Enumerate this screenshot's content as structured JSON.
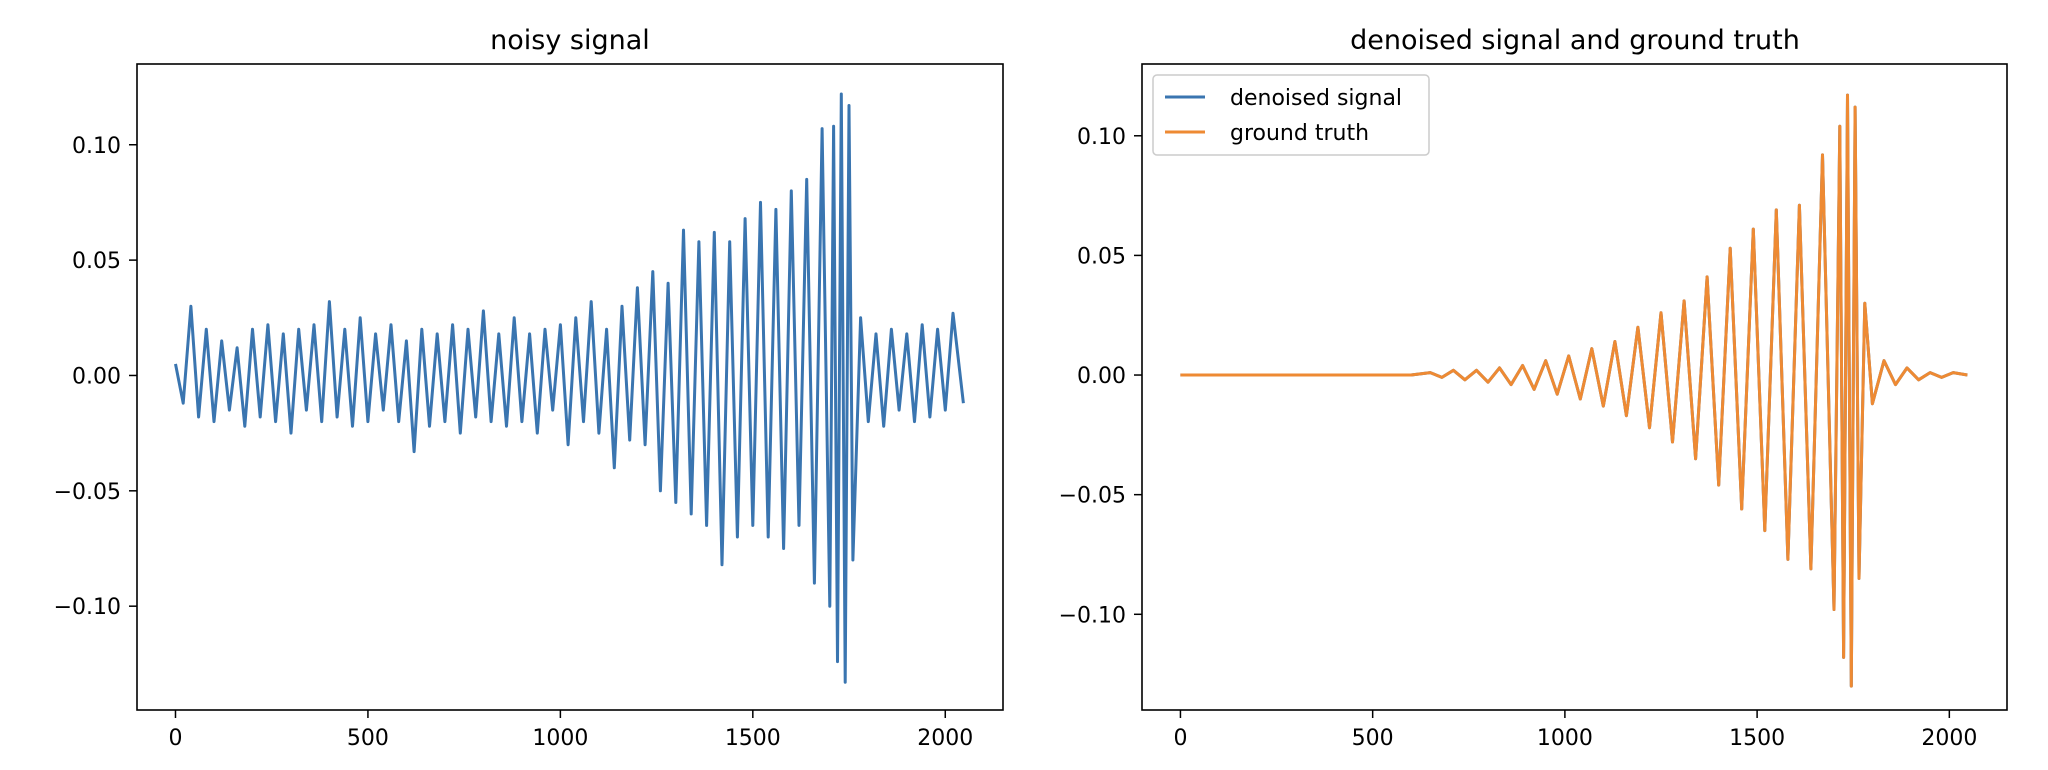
{
  "chart_data": [
    {
      "type": "line",
      "title": "noisy signal",
      "xlabel": "",
      "ylabel": "",
      "xlim": [
        -100,
        2150
      ],
      "ylim": [
        -0.145,
        0.135
      ],
      "x_ticks": [
        0,
        500,
        1000,
        1500,
        2000
      ],
      "x_tick_labels": [
        "0",
        "500",
        "1000",
        "1500",
        "2000"
      ],
      "y_ticks": [
        -0.1,
        -0.05,
        0.0,
        0.05,
        0.1
      ],
      "y_tick_labels": [
        "−0.10",
        "−0.05",
        "0.00",
        "0.05",
        "0.10"
      ],
      "grid": false,
      "legend": null,
      "series": [
        {
          "name": "noisy signal",
          "color": "#3a75b0",
          "x": [
            0,
            20,
            40,
            60,
            80,
            100,
            120,
            140,
            160,
            180,
            200,
            220,
            240,
            260,
            280,
            300,
            320,
            340,
            360,
            380,
            400,
            420,
            440,
            460,
            480,
            500,
            520,
            540,
            560,
            580,
            600,
            620,
            640,
            660,
            680,
            700,
            720,
            740,
            760,
            780,
            800,
            820,
            840,
            860,
            880,
            900,
            920,
            940,
            960,
            980,
            1000,
            1020,
            1040,
            1060,
            1080,
            1100,
            1120,
            1140,
            1160,
            1180,
            1200,
            1220,
            1240,
            1260,
            1280,
            1300,
            1320,
            1340,
            1360,
            1380,
            1400,
            1420,
            1440,
            1460,
            1480,
            1500,
            1520,
            1540,
            1560,
            1580,
            1600,
            1620,
            1640,
            1660,
            1680,
            1700,
            1710,
            1720,
            1730,
            1740,
            1750,
            1760,
            1780,
            1800,
            1820,
            1840,
            1860,
            1880,
            1900,
            1920,
            1940,
            1960,
            1980,
            2000,
            2020,
            2047
          ],
          "values": [
            0.005,
            -0.012,
            0.03,
            -0.018,
            0.02,
            -0.02,
            0.015,
            -0.015,
            0.012,
            -0.022,
            0.02,
            -0.018,
            0.022,
            -0.02,
            0.018,
            -0.025,
            0.02,
            -0.015,
            0.022,
            -0.02,
            0.032,
            -0.018,
            0.02,
            -0.022,
            0.025,
            -0.02,
            0.018,
            -0.015,
            0.022,
            -0.02,
            0.015,
            -0.033,
            0.02,
            -0.022,
            0.018,
            -0.02,
            0.022,
            -0.025,
            0.02,
            -0.018,
            0.028,
            -0.02,
            0.018,
            -0.022,
            0.025,
            -0.02,
            0.018,
            -0.025,
            0.02,
            -0.015,
            0.022,
            -0.03,
            0.025,
            -0.02,
            0.032,
            -0.025,
            0.02,
            -0.04,
            0.03,
            -0.028,
            0.038,
            -0.03,
            0.045,
            -0.05,
            0.04,
            -0.055,
            0.063,
            -0.06,
            0.058,
            -0.065,
            0.062,
            -0.082,
            0.058,
            -0.07,
            0.068,
            -0.065,
            0.075,
            -0.07,
            0.072,
            -0.075,
            0.08,
            -0.065,
            0.085,
            -0.09,
            0.107,
            -0.1,
            0.108,
            -0.124,
            0.122,
            -0.133,
            0.117,
            -0.08,
            0.025,
            -0.02,
            0.018,
            -0.022,
            0.02,
            -0.015,
            0.018,
            -0.02,
            0.022,
            -0.018,
            0.02,
            -0.015,
            0.027,
            -0.012
          ]
        }
      ]
    },
    {
      "type": "line",
      "title": "denoised signal and ground truth",
      "xlabel": "",
      "ylabel": "",
      "xlim": [
        -100,
        2150
      ],
      "ylim": [
        -0.14,
        0.13
      ],
      "x_ticks": [
        0,
        500,
        1000,
        1500,
        2000
      ],
      "x_tick_labels": [
        "0",
        "500",
        "1000",
        "1500",
        "2000"
      ],
      "y_ticks": [
        -0.1,
        -0.05,
        0.0,
        0.05,
        0.1
      ],
      "y_tick_labels": [
        "−0.10",
        "−0.05",
        "0.00",
        "0.05",
        "0.10"
      ],
      "grid": false,
      "legend": "top-left",
      "series": [
        {
          "name": "denoised signal",
          "color": "#3a75b0",
          "x": [
            0,
            300,
            600,
            650,
            680,
            710,
            740,
            770,
            800,
            830,
            860,
            890,
            920,
            950,
            980,
            1010,
            1040,
            1070,
            1100,
            1130,
            1160,
            1190,
            1220,
            1250,
            1280,
            1310,
            1340,
            1370,
            1400,
            1430,
            1460,
            1490,
            1520,
            1550,
            1580,
            1610,
            1640,
            1670,
            1700,
            1715,
            1725,
            1735,
            1745,
            1755,
            1765,
            1780,
            1800,
            1830,
            1860,
            1890,
            1920,
            1950,
            1980,
            2010,
            2047
          ],
          "values": [
            0,
            0,
            0,
            0.001,
            -0.001,
            0.002,
            -0.002,
            0.002,
            -0.003,
            0.003,
            -0.004,
            0.004,
            -0.006,
            0.006,
            -0.008,
            0.008,
            -0.01,
            0.011,
            -0.013,
            0.014,
            -0.017,
            0.02,
            -0.022,
            0.026,
            -0.028,
            0.031,
            -0.035,
            0.041,
            -0.046,
            0.053,
            -0.056,
            0.061,
            -0.065,
            0.069,
            -0.077,
            0.071,
            -0.081,
            0.092,
            -0.098,
            0.104,
            -0.118,
            0.117,
            -0.13,
            0.112,
            -0.085,
            0.03,
            -0.012,
            0.006,
            -0.004,
            0.003,
            -0.002,
            0.001,
            -0.001,
            0.001,
            0
          ]
        },
        {
          "name": "ground truth",
          "color": "#ee8a33",
          "x": [
            0,
            300,
            600,
            650,
            680,
            710,
            740,
            770,
            800,
            830,
            860,
            890,
            920,
            950,
            980,
            1010,
            1040,
            1070,
            1100,
            1130,
            1160,
            1190,
            1220,
            1250,
            1280,
            1310,
            1340,
            1370,
            1400,
            1430,
            1460,
            1490,
            1520,
            1550,
            1580,
            1610,
            1640,
            1670,
            1700,
            1715,
            1725,
            1735,
            1745,
            1755,
            1765,
            1780,
            1800,
            1830,
            1860,
            1890,
            1920,
            1950,
            1980,
            2010,
            2047
          ],
          "values": [
            0,
            0,
            0,
            0.001,
            -0.001,
            0.002,
            -0.002,
            0.002,
            -0.003,
            0.003,
            -0.004,
            0.004,
            -0.006,
            0.006,
            -0.008,
            0.008,
            -0.01,
            0.011,
            -0.013,
            0.014,
            -0.017,
            0.02,
            -0.022,
            0.026,
            -0.028,
            0.031,
            -0.035,
            0.041,
            -0.046,
            0.053,
            -0.056,
            0.061,
            -0.065,
            0.069,
            -0.077,
            0.071,
            -0.081,
            0.092,
            -0.098,
            0.104,
            -0.118,
            0.117,
            -0.13,
            0.112,
            -0.085,
            0.03,
            -0.012,
            0.006,
            -0.004,
            0.003,
            -0.002,
            0.001,
            -0.001,
            0.001,
            0
          ]
        }
      ]
    }
  ]
}
